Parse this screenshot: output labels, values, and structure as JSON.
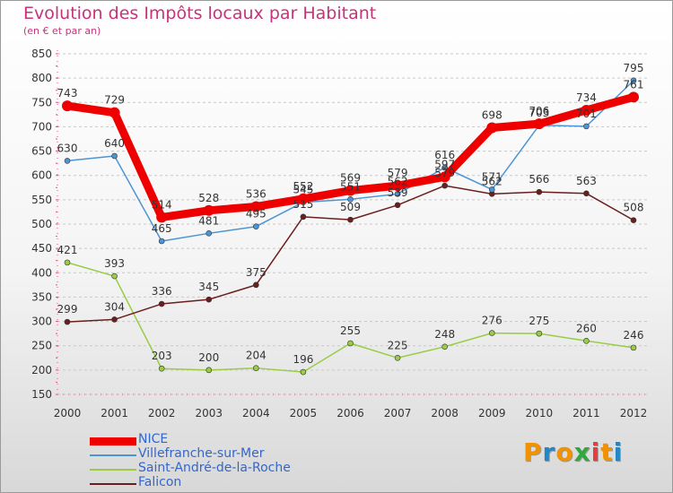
{
  "title": "Evolution des Impôts locaux par Habitant",
  "subtitle": "(en € et par an)",
  "logo": {
    "text": "Proxiti",
    "colors": [
      "#f39200",
      "#1e88c8",
      "#f39200",
      "#2eaa3c",
      "#e63c3c",
      "#f39200",
      "#1e88c8"
    ]
  },
  "chart_data": {
    "type": "line",
    "title": "Evolution des Impôts locaux par Habitant",
    "subtitle": "(en € et par an)",
    "xlabel": "",
    "ylabel": "",
    "ylim": [
      150,
      850
    ],
    "yticks": [
      150,
      200,
      250,
      300,
      350,
      400,
      450,
      500,
      550,
      600,
      650,
      700,
      750,
      800,
      850
    ],
    "categories": [
      "2000",
      "2001",
      "2002",
      "2003",
      "2004",
      "2005",
      "2006",
      "2007",
      "2008",
      "2009",
      "2010",
      "2011",
      "2012"
    ],
    "grid": "horizontal dashed",
    "legend_position": "bottom-left",
    "series": [
      {
        "name": "Saint-André-de-la-Roche",
        "color": "#99cc44",
        "values": [
          421,
          393,
          203,
          200,
          204,
          196,
          255,
          225,
          248,
          276,
          275,
          260,
          246
        ]
      },
      {
        "name": "Falicon",
        "color": "#6b1e1e",
        "values": [
          299,
          304,
          336,
          345,
          375,
          515,
          509,
          539,
          579,
          562,
          566,
          563,
          508
        ]
      },
      {
        "name": "Villefranche-sur-Mer",
        "color": "#4d94d4",
        "values": [
          630,
          640,
          465,
          481,
          495,
          545,
          551,
          562,
          616,
          571,
          703,
          701,
          795
        ]
      },
      {
        "name": "NICE",
        "color": "#ee0000",
        "values": [
          743,
          729,
          514,
          528,
          536,
          552,
          569,
          579,
          597,
          698,
          706,
          734,
          761
        ]
      }
    ],
    "legend_order": [
      "NICE",
      "Villefranche-sur-Mer",
      "Saint-André-de-la-Roche",
      "Falicon"
    ]
  }
}
